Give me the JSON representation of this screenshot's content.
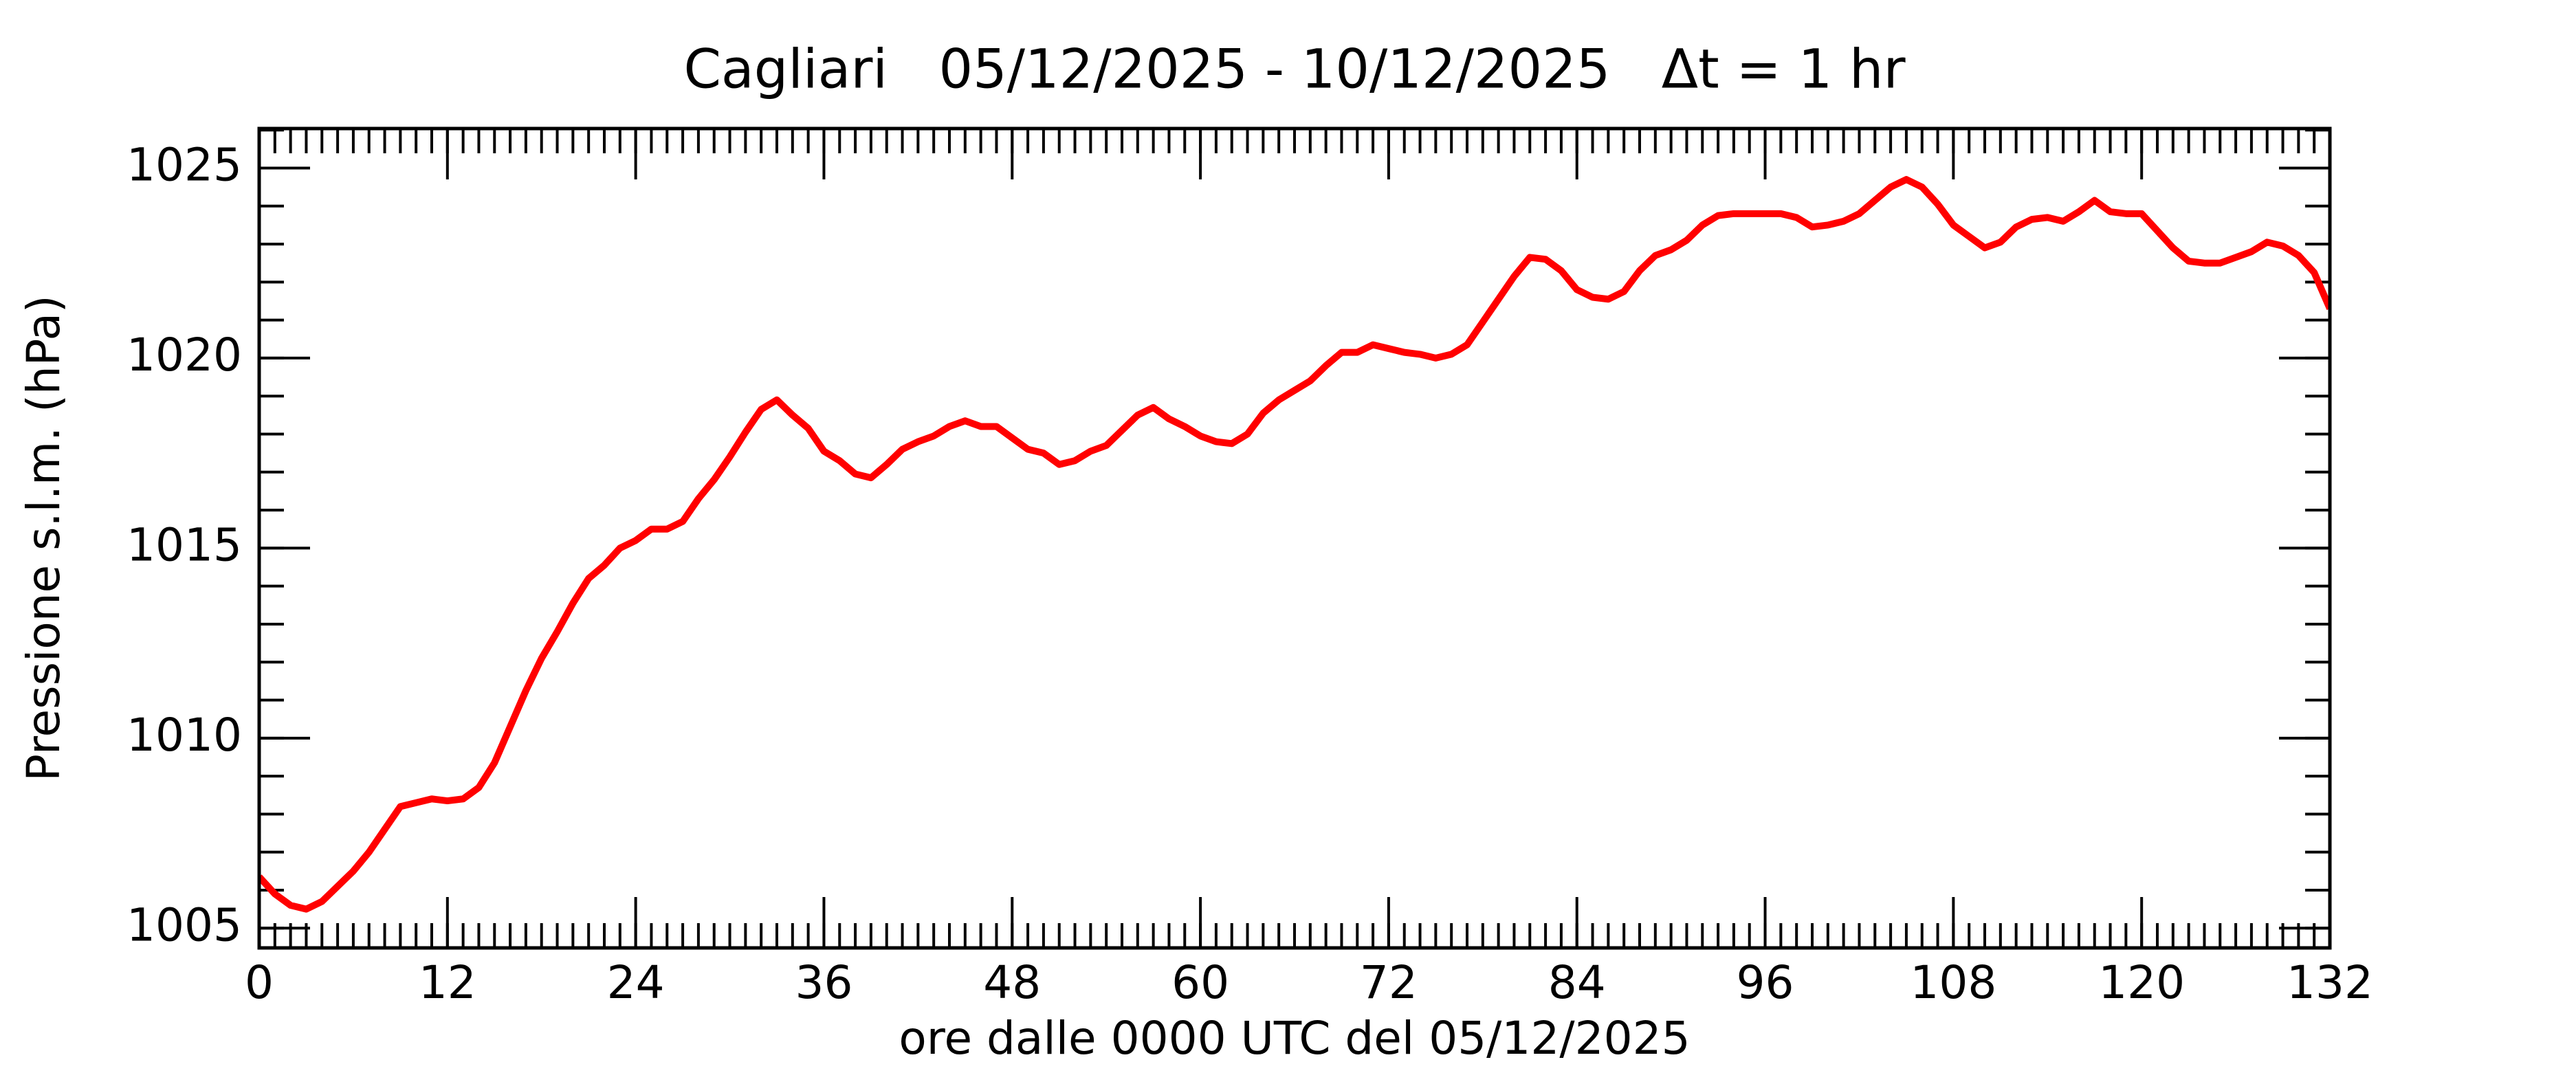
{
  "chart_data": {
    "type": "line",
    "title": "Cagliari   05/12/2025 - 10/12/2025   Δt = 1 hr",
    "x_label": "ore dalle 0000 UTC del 05/12/2025",
    "y_label": "Pressione s.l.m. (hPa)",
    "x": [
      0,
      1,
      2,
      3,
      4,
      5,
      6,
      7,
      8,
      9,
      10,
      11,
      12,
      13,
      14,
      15,
      16,
      17,
      18,
      19,
      20,
      21,
      22,
      23,
      24,
      25,
      26,
      27,
      28,
      29,
      30,
      31,
      32,
      33,
      34,
      35,
      36,
      37,
      38,
      39,
      40,
      41,
      42,
      43,
      44,
      45,
      46,
      47,
      48,
      49,
      50,
      51,
      52,
      53,
      54,
      55,
      56,
      57,
      58,
      59,
      60,
      61,
      62,
      63,
      64,
      65,
      66,
      67,
      68,
      69,
      70,
      71,
      72,
      73,
      74,
      75,
      76,
      77,
      78,
      79,
      80,
      81,
      82,
      83,
      84,
      85,
      86,
      87,
      88,
      89,
      90,
      91,
      92,
      93,
      94,
      95,
      96,
      97,
      98,
      99,
      100,
      101,
      102,
      103,
      104,
      105,
      106,
      107,
      108,
      109,
      110,
      111,
      112,
      113,
      114,
      115,
      116,
      117,
      118,
      119,
      120,
      121,
      122,
      123,
      124,
      125,
      126,
      127,
      128,
      129,
      130,
      131,
      132
    ],
    "series": [
      {
        "name": "Cagliari",
        "color": "#ff0000",
        "values": [
          1006.35,
          1005.9,
          1005.6,
          1005.5,
          1005.7,
          1006.1,
          1006.5,
          1007.0,
          1007.6,
          1008.2,
          1008.3,
          1008.4,
          1008.35,
          1008.4,
          1008.7,
          1009.35,
          1010.3,
          1011.25,
          1012.1,
          1012.8,
          1013.55,
          1014.2,
          1014.55,
          1015.0,
          1015.2,
          1015.5,
          1015.5,
          1015.7,
          1016.3,
          1016.8,
          1017.4,
          1018.05,
          1018.65,
          1018.9,
          1018.5,
          1018.15,
          1017.55,
          1017.3,
          1016.95,
          1016.85,
          1017.2,
          1017.6,
          1017.8,
          1017.95,
          1018.2,
          1018.35,
          1018.2,
          1018.2,
          1017.9,
          1017.6,
          1017.5,
          1017.2,
          1017.3,
          1017.55,
          1017.7,
          1018.1,
          1018.5,
          1018.7,
          1018.4,
          1018.2,
          1017.95,
          1017.8,
          1017.75,
          1018.0,
          1018.55,
          1018.9,
          1019.15,
          1019.4,
          1019.8,
          1020.15,
          1020.15,
          1020.35,
          1020.25,
          1020.15,
          1020.1,
          1020.0,
          1020.1,
          1020.35,
          1020.95,
          1021.55,
          1022.15,
          1022.65,
          1022.6,
          1022.3,
          1021.8,
          1021.6,
          1021.55,
          1021.75,
          1022.3,
          1022.7,
          1022.85,
          1023.1,
          1023.5,
          1023.75,
          1023.8,
          1023.8,
          1023.8,
          1023.8,
          1023.7,
          1023.45,
          1023.5,
          1023.6,
          1023.8,
          1024.15,
          1024.5,
          1024.7,
          1024.5,
          1024.05,
          1023.5,
          1023.2,
          1022.9,
          1023.05,
          1023.45,
          1023.65,
          1023.7,
          1023.6,
          1023.85,
          1024.15,
          1023.85,
          1023.8,
          1023.8,
          1023.35,
          1022.9,
          1022.55,
          1022.5,
          1022.5,
          1022.65,
          1022.8,
          1023.05,
          1022.95,
          1022.7,
          1022.25,
          1021.3
        ]
      }
    ],
    "xlim": [
      0,
      132
    ],
    "xticks": [
      0,
      12,
      24,
      36,
      48,
      60,
      72,
      84,
      96,
      108,
      120,
      132
    ],
    "ylim": [
      1004.48,
      1026.04
    ],
    "yticks": [
      1005,
      1010,
      1015,
      1020,
      1025
    ],
    "yminorticks": [
      1005,
      1006,
      1007,
      1008,
      1009,
      1010,
      1011,
      1012,
      1013,
      1014,
      1015,
      1016,
      1017,
      1018,
      1019,
      1020,
      1021,
      1022,
      1023,
      1024,
      1025,
      1026
    ],
    "grid": false
  }
}
